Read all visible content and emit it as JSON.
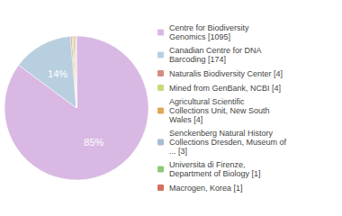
{
  "chart_data": {
    "type": "pie",
    "categories": [
      "Centre for Biodiversity\nGenomics [1095]",
      "Canadian Centre for DNA\nBarcoding [174]",
      "Naturalis Biodiversity Center [4]",
      "Mined from GenBank, NCBI [4]",
      "Agricultural Scientific\nCollections Unit, New South\nWales [4]",
      "Senckenberg Natural History\nCollections Dresden, Museum of\n... [3]",
      "Universita di Firenze,\nDepartment of Biology [1]",
      "Macrogen, Korea [1]"
    ],
    "values": [
      85.15,
      13.53,
      0.31,
      0.31,
      0.31,
      0.23,
      0.08,
      0.08
    ],
    "value_labels": [
      "85%",
      "14%",
      null,
      null,
      null,
      null,
      null,
      null
    ],
    "data_labels": true,
    "colors": [
      "#d9b8e3",
      "#b8cfe0",
      "#d98b80",
      "#ccd97a",
      "#e0a854",
      "#a8bcd4",
      "#8ec87a",
      "#d47060"
    ],
    "legend": "right"
  }
}
